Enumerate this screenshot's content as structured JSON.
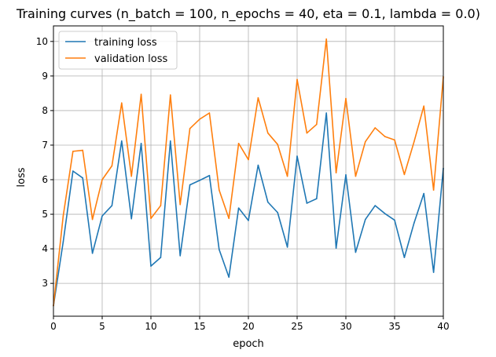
{
  "chart_data": {
    "type": "line",
    "title": "Training curves (n_batch = 100, n_epochs = 40, eta = 0.1, lambda = 0.0)",
    "xlabel": "epoch",
    "ylabel": "loss",
    "xlim": [
      0,
      40
    ],
    "ylim": [
      2.05,
      10.45
    ],
    "xticks": [
      0,
      5,
      10,
      15,
      20,
      25,
      30,
      35,
      40
    ],
    "yticks": [
      3,
      4,
      5,
      6,
      7,
      8,
      9,
      10
    ],
    "grid": true,
    "legend_position": "top-left",
    "x": [
      0,
      1,
      2,
      3,
      4,
      5,
      6,
      7,
      8,
      9,
      10,
      11,
      12,
      13,
      14,
      15,
      16,
      17,
      18,
      19,
      20,
      21,
      22,
      23,
      24,
      25,
      26,
      27,
      28,
      29,
      30,
      31,
      32,
      33,
      34,
      35,
      36,
      37,
      38,
      39,
      40
    ],
    "series": [
      {
        "name": "training loss",
        "color": "#1f77b4",
        "values": [
          2.35,
          4.2,
          6.25,
          6.05,
          3.87,
          4.95,
          5.25,
          7.12,
          4.87,
          7.05,
          3.5,
          3.75,
          7.12,
          3.8,
          5.85,
          5.98,
          6.12,
          3.98,
          3.18,
          5.18,
          4.82,
          6.42,
          5.35,
          5.05,
          4.05,
          6.68,
          5.32,
          5.45,
          7.93,
          4.02,
          6.14,
          3.9,
          4.85,
          5.25,
          5.02,
          4.83,
          3.75,
          4.75,
          5.6,
          3.32,
          6.33
        ]
      },
      {
        "name": "validation loss",
        "color": "#ff7f0e",
        "values": [
          2.35,
          4.95,
          6.82,
          6.85,
          4.85,
          6.0,
          6.4,
          8.22,
          6.1,
          8.47,
          4.88,
          5.25,
          8.45,
          5.28,
          7.48,
          7.75,
          7.93,
          5.7,
          4.88,
          7.05,
          6.58,
          8.37,
          7.35,
          7.02,
          6.1,
          8.9,
          7.35,
          7.6,
          10.07,
          6.2,
          8.35,
          6.1,
          7.1,
          7.5,
          7.25,
          7.15,
          6.15,
          7.1,
          8.13,
          5.7,
          8.98
        ]
      }
    ]
  }
}
